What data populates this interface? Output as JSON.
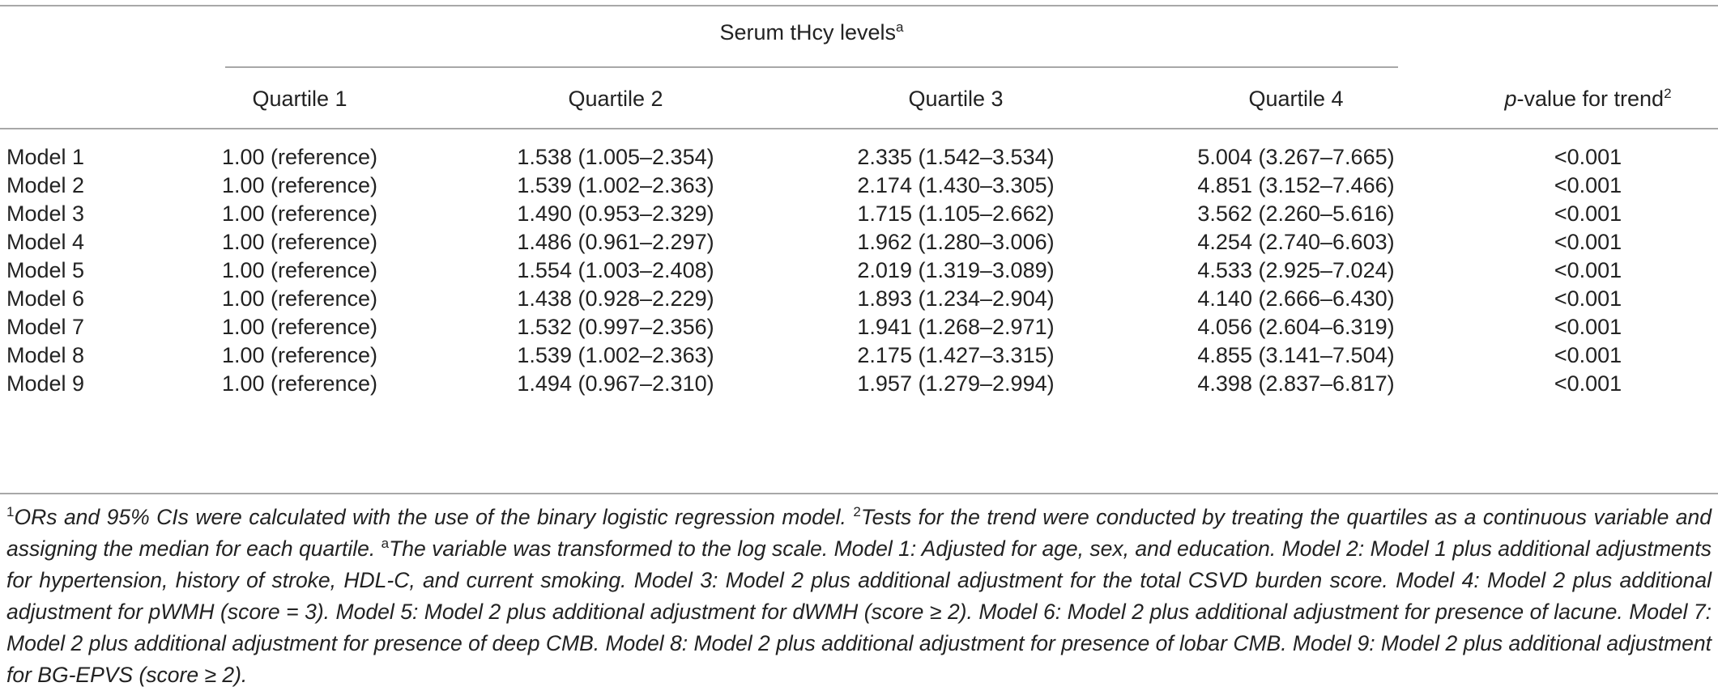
{
  "table": {
    "group_title": "Serum tHcy levels",
    "group_title_sup": "a",
    "headers": [
      "Quartile 1",
      "Quartile 2",
      "Quartile 3",
      "Quartile 4"
    ],
    "trend_header": {
      "italic": "p",
      "rest": "-value for trend",
      "sup": "2"
    },
    "rows": [
      {
        "label": "Model 1",
        "q1": "1.00 (reference)",
        "q2": "1.538 (1.005–2.354)",
        "q3": "2.335 (1.542–3.534)",
        "q4": "5.004 (3.267–7.665)",
        "p": "<0.001"
      },
      {
        "label": "Model 2",
        "q1": "1.00 (reference)",
        "q2": "1.539 (1.002–2.363)",
        "q3": "2.174 (1.430–3.305)",
        "q4": "4.851 (3.152–7.466)",
        "p": "<0.001"
      },
      {
        "label": "Model 3",
        "q1": "1.00 (reference)",
        "q2": "1.490 (0.953–2.329)",
        "q3": "1.715 (1.105–2.662)",
        "q4": "3.562 (2.260–5.616)",
        "p": "<0.001"
      },
      {
        "label": "Model 4",
        "q1": "1.00 (reference)",
        "q2": "1.486 (0.961–2.297)",
        "q3": "1.962 (1.280–3.006)",
        "q4": "4.254 (2.740–6.603)",
        "p": "<0.001"
      },
      {
        "label": "Model 5",
        "q1": "1.00 (reference)",
        "q2": "1.554 (1.003–2.408)",
        "q3": "2.019 (1.319–3.089)",
        "q4": "4.533 (2.925–7.024)",
        "p": "<0.001"
      },
      {
        "label": "Model 6",
        "q1": "1.00 (reference)",
        "q2": "1.438 (0.928–2.229)",
        "q3": "1.893 (1.234–2.904)",
        "q4": "4.140 (2.666–6.430)",
        "p": "<0.001"
      },
      {
        "label": "Model 7",
        "q1": "1.00 (reference)",
        "q2": "1.532 (0.997–2.356)",
        "q3": "1.941 (1.268–2.971)",
        "q4": "4.056 (2.604–6.319)",
        "p": "<0.001"
      },
      {
        "label": "Model 8",
        "q1": "1.00 (reference)",
        "q2": "1.539 (1.002–2.363)",
        "q3": "2.175 (1.427–3.315)",
        "q4": "4.855 (3.141–7.504)",
        "p": "<0.001"
      },
      {
        "label": "Model 9",
        "q1": "1.00 (reference)",
        "q2": "1.494 (0.967–2.310)",
        "q3": "1.957 (1.279–2.994)",
        "q4": "4.398 (2.837–6.817)",
        "p": "<0.001"
      }
    ]
  },
  "footnote": {
    "n1_sup": "1",
    "n1_text": "ORs and 95% CIs were calculated with the use of the binary logistic regression model. ",
    "n2_sup": "2",
    "n2_text": "Tests for the trend were conducted by treating the quartiles as a continuous variable and assigning the median for each quartile. ",
    "na_sup": "a",
    "na_text": "The variable was transformed to the log scale. Model 1: Adjusted for age, sex, and education. Model 2: Model 1 plus additional adjustments for hypertension, history of stroke, HDL-C, and current smoking. Model 3: Model 2 plus additional adjustment for the total CSVD burden score. Model 4: Model 2 plus additional adjustment for pWMH (score = 3). Model 5: Model 2 plus additional adjustment for dWMH (score ≥ 2). Model 6: Model 2 plus additional adjustment for presence of lacune. Model 7: Model 2 plus additional adjustment for presence of deep CMB. Model 8: Model 2 plus additional adjustment for presence of lobar CMB. Model 9: Model 2 plus additional adjustment for BG-EPVS (score ≥ 2)."
  }
}
